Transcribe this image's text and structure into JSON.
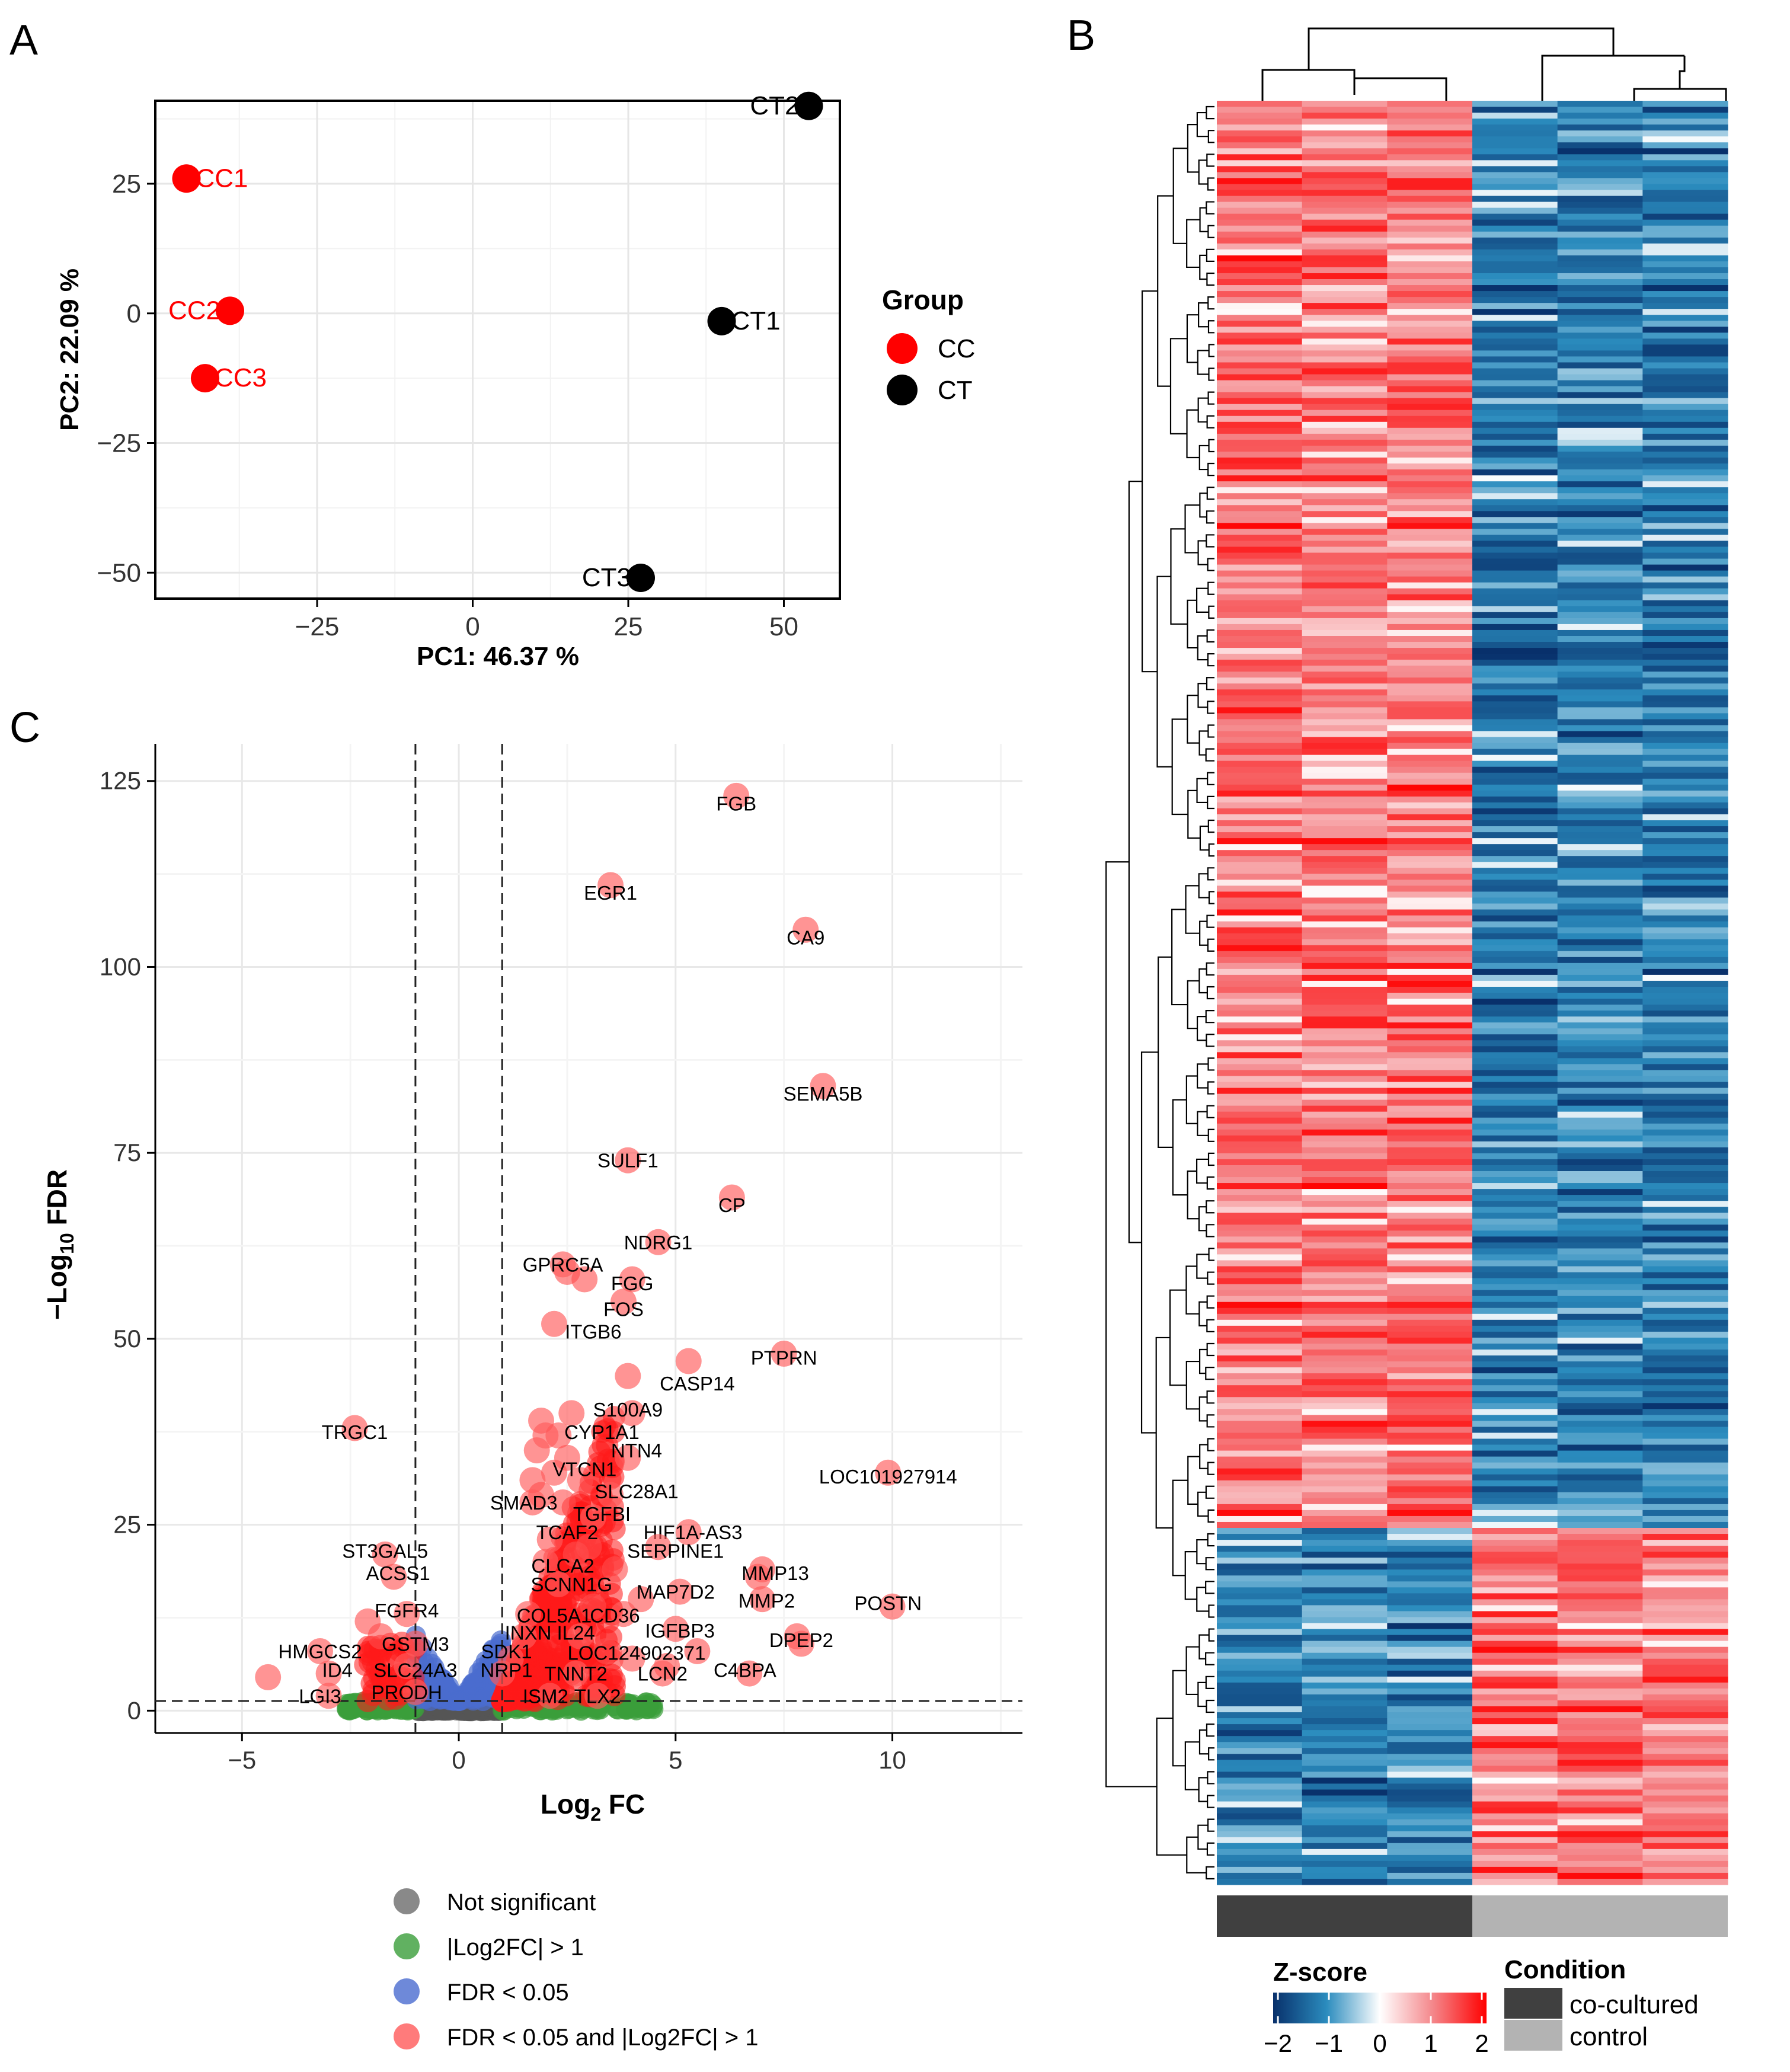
{
  "panel_labels": [
    "A",
    "B",
    "C"
  ],
  "chart_data": [
    {
      "id": "pca",
      "type": "scatter",
      "panel": "A",
      "xlabel": "PC1: 46.37 %",
      "ylabel": "PC2: 22.09 %",
      "xlim": [
        -51,
        59
      ],
      "ylim": [
        -55,
        41
      ],
      "xticks": [
        -25,
        0,
        25,
        50
      ],
      "xtick_labels": [
        "−25",
        "0",
        "25",
        "50"
      ],
      "yticks": [
        25,
        0,
        -25,
        -50
      ],
      "ytick_labels": [
        "25",
        "0",
        "−25",
        "−50"
      ],
      "minor_xgrid": [
        -37.5,
        -12.5,
        12.5,
        37.5
      ],
      "minor_ygrid": [
        37.5,
        12.5,
        -12.5,
        -37.5
      ],
      "legend": {
        "title": "Group",
        "position": "right",
        "entries": [
          {
            "label": "CC",
            "color": "#ff0000"
          },
          {
            "label": "CT",
            "color": "#000000"
          }
        ]
      },
      "points": [
        {
          "label": "CC1",
          "x": -46,
          "y": 26,
          "group": "CC",
          "color": "#ff0000",
          "label_side": "right"
        },
        {
          "label": "CC2",
          "x": -39,
          "y": 0.5,
          "group": "CC",
          "color": "#ff0000",
          "label_side": "left"
        },
        {
          "label": "CC3",
          "x": -43,
          "y": -12.5,
          "group": "CC",
          "color": "#ff0000",
          "label_side": "right"
        },
        {
          "label": "CT1",
          "x": 40,
          "y": -1.5,
          "group": "CT",
          "color": "#000000",
          "label_side": "right"
        },
        {
          "label": "CT2",
          "x": 54,
          "y": 40,
          "group": "CT",
          "color": "#000000",
          "label_side": "left"
        },
        {
          "label": "CT3",
          "x": 27,
          "y": -51,
          "group": "CT",
          "color": "#000000",
          "label_side": "left"
        }
      ]
    },
    {
      "id": "heatmap",
      "type": "heatmap",
      "panel": "B",
      "columns": 6,
      "column_groups": [
        {
          "label": "co-cultured",
          "columns": [
            0,
            1,
            2
          ],
          "color": "#404040"
        },
        {
          "label": "control",
          "columns": [
            3,
            4,
            5
          ],
          "color": "#b3b3b3"
        }
      ],
      "cluster_split_fraction": 0.8,
      "colorbar": {
        "title": "Z-score",
        "range": [
          -2,
          2
        ],
        "ticks": [
          "−2",
          "−1",
          "0",
          "1",
          "2"
        ],
        "colors": [
          "#08306b",
          "#2b8cbe",
          "#ffffff",
          "#f4868a",
          "#ff0000"
        ]
      },
      "condition_legend": {
        "title": "Condition",
        "entries": [
          {
            "label": "co-cultured",
            "color": "#404040"
          },
          {
            "label": "control",
            "color": "#b3b3b3"
          }
        ]
      }
    },
    {
      "id": "volcano",
      "type": "scatter",
      "panel": "C",
      "xlabel_main": "Log",
      "xlabel_sub": "2",
      "xlabel_rest": " FC",
      "ylabel_main": "−Log",
      "ylabel_sub": "10",
      "ylabel_rest": " FDR",
      "xlim": [
        -7,
        13
      ],
      "ylim": [
        -3,
        130
      ],
      "xticks": [
        -5,
        0,
        5,
        10
      ],
      "xtick_labels": [
        "−5",
        "0",
        "5",
        "10"
      ],
      "yticks": [
        0,
        25,
        50,
        75,
        100,
        125
      ],
      "ytick_labels": [
        "0",
        "25",
        "50",
        "75",
        "100",
        "125"
      ],
      "vlines": [
        -1,
        1
      ],
      "hline": 1.3,
      "legend": {
        "position": "bottom",
        "entries": [
          {
            "label": "Not significant",
            "color": "#6b6b6b"
          },
          {
            "label": "|Log2FC| > 1",
            "color": "#3a9e3a"
          },
          {
            "label": "FDR < 0.05",
            "color": "#4a6ccf"
          },
          {
            "label": "FDR < 0.05 and |Log2FC| > 1",
            "color": "#ff5a5a"
          }
        ]
      },
      "labeled_points": [
        {
          "label": "FGB",
          "x": 6.4,
          "y": 123,
          "lx": 6.4,
          "ly": 122
        },
        {
          "label": "EGR1",
          "x": 3.5,
          "y": 111,
          "lx": 3.5,
          "ly": 110
        },
        {
          "label": "CA9",
          "x": 8.0,
          "y": 105,
          "lx": 8.0,
          "ly": 104
        },
        {
          "label": "SEMA5B",
          "x": 8.4,
          "y": 84,
          "lx": 8.4,
          "ly": 83
        },
        {
          "label": "SULF1",
          "x": 3.9,
          "y": 74,
          "lx": 3.9,
          "ly": 74
        },
        {
          "label": "CP",
          "x": 6.3,
          "y": 69,
          "lx": 6.3,
          "ly": 68
        },
        {
          "label": "NDRG1",
          "x": 4.6,
          "y": 63,
          "lx": 4.6,
          "ly": 63
        },
        {
          "label": "GPRC5A",
          "x": 2.4,
          "y": 60,
          "lx": 2.4,
          "ly": 60
        },
        {
          "label": "FGG",
          "x": 4.0,
          "y": 58,
          "lx": 4.0,
          "ly": 57.5
        },
        {
          "label": "FOS",
          "x": 3.8,
          "y": 55,
          "lx": 3.8,
          "ly": 54
        },
        {
          "label": "ITGB6",
          "x": 2.2,
          "y": 52,
          "lx": 3.1,
          "ly": 51
        },
        {
          "label": "PTPRN",
          "x": 7.5,
          "y": 48,
          "lx": 7.5,
          "ly": 47.5
        },
        {
          "label": "CASP14",
          "x": 5.3,
          "y": 47,
          "lx": 5.5,
          "ly": 44
        },
        {
          "label": "S100A9",
          "x": 4.0,
          "y": 40,
          "lx": 3.9,
          "ly": 40.5
        },
        {
          "label": "TRGC1",
          "x": -2.4,
          "y": 38,
          "lx": -2.4,
          "ly": 37.5
        },
        {
          "label": "CYP1A1",
          "x": 2.0,
          "y": 37,
          "lx": 3.3,
          "ly": 37.5
        },
        {
          "label": "NTN4",
          "x": 3.9,
          "y": 34,
          "lx": 4.1,
          "ly": 35
        },
        {
          "label": "VTCN1",
          "x": 2.2,
          "y": 32,
          "lx": 2.9,
          "ly": 32.5
        },
        {
          "label": "LOC101927914",
          "x": 9.9,
          "y": 32,
          "lx": 9.9,
          "ly": 31.5
        },
        {
          "label": "SLC28A1",
          "x": 3.5,
          "y": 29,
          "lx": 4.1,
          "ly": 29.5
        },
        {
          "label": "SMAD3",
          "x": 1.7,
          "y": 28,
          "lx": 1.5,
          "ly": 28
        },
        {
          "label": "TGFBI",
          "x": 3.1,
          "y": 26,
          "lx": 3.3,
          "ly": 26.5
        },
        {
          "label": "TCAF2",
          "x": 2.1,
          "y": 23,
          "lx": 2.5,
          "ly": 24
        },
        {
          "label": "HIF1A-AS3",
          "x": 5.3,
          "y": 24,
          "lx": 5.4,
          "ly": 24
        },
        {
          "label": "SERPINE1",
          "x": 4.6,
          "y": 22,
          "lx": 5.0,
          "ly": 21.5
        },
        {
          "label": "ST3GAL5",
          "x": -1.7,
          "y": 21,
          "lx": -1.7,
          "ly": 21.5
        },
        {
          "label": "CLCA2",
          "x": 2.0,
          "y": 20,
          "lx": 2.4,
          "ly": 19.5
        },
        {
          "label": "ACSS1",
          "x": -1.5,
          "y": 18,
          "lx": -1.4,
          "ly": 18.5
        },
        {
          "label": "MMP13",
          "x": 7.0,
          "y": 19,
          "lx": 7.3,
          "ly": 18.5
        },
        {
          "label": "SCNN1G",
          "x": 2.3,
          "y": 17,
          "lx": 2.6,
          "ly": 17
        },
        {
          "label": "MAP7D2",
          "x": 5.1,
          "y": 16,
          "lx": 5.0,
          "ly": 16
        },
        {
          "label": "MMP2",
          "x": 7.0,
          "y": 15,
          "lx": 7.1,
          "ly": 14.8
        },
        {
          "label": "POSTN",
          "x": 10.0,
          "y": 14,
          "lx": 9.9,
          "ly": 14.5
        },
        {
          "label": "FGFR4",
          "x": -1.2,
          "y": 13,
          "lx": -1.2,
          "ly": 13.5
        },
        {
          "label": "COL5A1",
          "x": 1.6,
          "y": 13,
          "lx": 2.2,
          "ly": 12.8
        },
        {
          "label": "CD36",
          "x": 3.8,
          "y": 13,
          "lx": 3.6,
          "ly": 12.8
        },
        {
          "label": "IGFBP3",
          "x": 5.0,
          "y": 11,
          "lx": 5.1,
          "ly": 10.8
        },
        {
          "label": "INXN",
          "x": 1.5,
          "y": 10,
          "lx": 1.6,
          "ly": 10.5
        },
        {
          "label": "IL24",
          "x": 2.8,
          "y": 10,
          "lx": 2.7,
          "ly": 10.5
        },
        {
          "label": "DPEP2",
          "x": 7.9,
          "y": 9,
          "lx": 7.9,
          "ly": 9.5
        },
        {
          "label": "GSTM3",
          "x": -1.0,
          "y": 9,
          "lx": -1.0,
          "ly": 9
        },
        {
          "label": "HMGCS2",
          "x": -3.2,
          "y": 8,
          "lx": -3.2,
          "ly": 8
        },
        {
          "label": "SDK1",
          "x": 1.2,
          "y": 7,
          "lx": 1.1,
          "ly": 8
        },
        {
          "label": "LOC124902371",
          "x": 4.0,
          "y": 7,
          "lx": 4.1,
          "ly": 7.8
        },
        {
          "label": "ID4",
          "x": -3.0,
          "y": 5,
          "lx": -2.8,
          "ly": 5.5
        },
        {
          "label": "SLC24A3",
          "x": -1.2,
          "y": 6,
          "lx": -1.0,
          "ly": 5.5
        },
        {
          "label": "NRP1",
          "x": 1.0,
          "y": 5,
          "lx": 1.1,
          "ly": 5.5
        },
        {
          "label": "TNNT2",
          "x": 2.7,
          "y": 5,
          "lx": 2.7,
          "ly": 5
        },
        {
          "label": "LCN2",
          "x": 4.7,
          "y": 5,
          "lx": 4.7,
          "ly": 5
        },
        {
          "label": "C4BPA",
          "x": 6.7,
          "y": 5,
          "lx": 6.6,
          "ly": 5.5
        },
        {
          "label": "LGI3",
          "x": -3.0,
          "y": 2,
          "lx": -3.2,
          "ly": 2
        },
        {
          "label": "PRODH",
          "x": -1.0,
          "y": 2.5,
          "lx": -1.2,
          "ly": 2.5
        },
        {
          "label": "ISM2",
          "x": 2.1,
          "y": 2,
          "lx": 2.0,
          "ly": 2
        },
        {
          "label": "TLX2",
          "x": 3.2,
          "y": 2,
          "lx": 3.2,
          "ly": 2
        }
      ],
      "extra_sig_points": [
        {
          "x": -4.4,
          "y": 4.5
        },
        {
          "x": 1.9,
          "y": 39
        },
        {
          "x": 2.6,
          "y": 40
        },
        {
          "x": 2.3,
          "y": 37
        },
        {
          "x": 1.8,
          "y": 35
        },
        {
          "x": 2.5,
          "y": 34
        },
        {
          "x": 1.7,
          "y": 31
        },
        {
          "x": 2.8,
          "y": 31
        },
        {
          "x": 1.9,
          "y": 29
        },
        {
          "x": 2.4,
          "y": 28
        },
        {
          "x": 3.0,
          "y": 22
        },
        {
          "x": 2.7,
          "y": 21
        },
        {
          "x": 3.6,
          "y": 19
        },
        {
          "x": 4.2,
          "y": 15
        },
        {
          "x": 3.1,
          "y": 14
        },
        {
          "x": 3.4,
          "y": 8
        },
        {
          "x": 4.8,
          "y": 6
        },
        {
          "x": 5.5,
          "y": 8
        },
        {
          "x": 6.9,
          "y": 18
        },
        {
          "x": 7.8,
          "y": 10
        },
        {
          "x": 3.9,
          "y": 45
        },
        {
          "x": 2.5,
          "y": 59
        },
        {
          "x": 2.9,
          "y": 58
        },
        {
          "x": -2.1,
          "y": 12
        },
        {
          "x": -1.8,
          "y": 10
        }
      ]
    }
  ]
}
